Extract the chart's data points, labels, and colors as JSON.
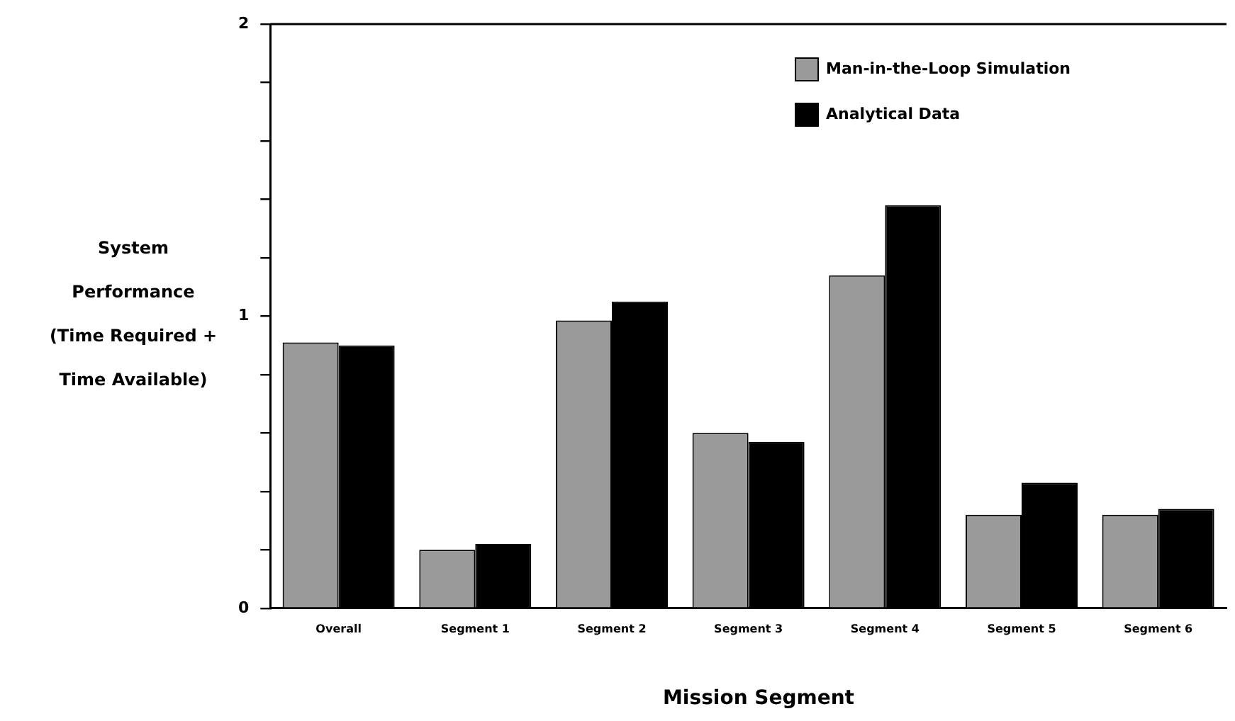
{
  "chart_data": {
    "type": "bar",
    "xlabel": "Mission Segment",
    "ylabel": "System Performance (Time Required + Time Available)",
    "categories": [
      "Overall",
      "Segment 1",
      "Segment 2",
      "Segment 3",
      "Segment 4",
      "Segment 5",
      "Segment 6"
    ],
    "series": [
      {
        "name": "Man-in-the-Loop Simulation",
        "color": "#9a9a9a",
        "values": [
          0.91,
          0.2,
          0.985,
          0.6,
          1.14,
          0.32,
          0.32
        ]
      },
      {
        "name": "Analytical Data",
        "color": "#000000",
        "values": [
          0.9,
          0.22,
          1.05,
          0.57,
          1.38,
          0.43,
          0.34
        ]
      }
    ],
    "ylim": [
      0,
      2
    ],
    "yticks": [
      0,
      {
        "value": 0.2,
        "label": null
      },
      {
        "value": 0.4,
        "label": null
      },
      {
        "value": 0.6,
        "label": null
      },
      {
        "value": 0.8,
        "label": null
      },
      1,
      {
        "value": 1.2,
        "label": null
      },
      {
        "value": 1.4,
        "label": null
      },
      {
        "value": 1.6,
        "label": null
      },
      {
        "value": 1.8,
        "label": null
      },
      2
    ],
    "grid": false,
    "legend": "top right"
  }
}
